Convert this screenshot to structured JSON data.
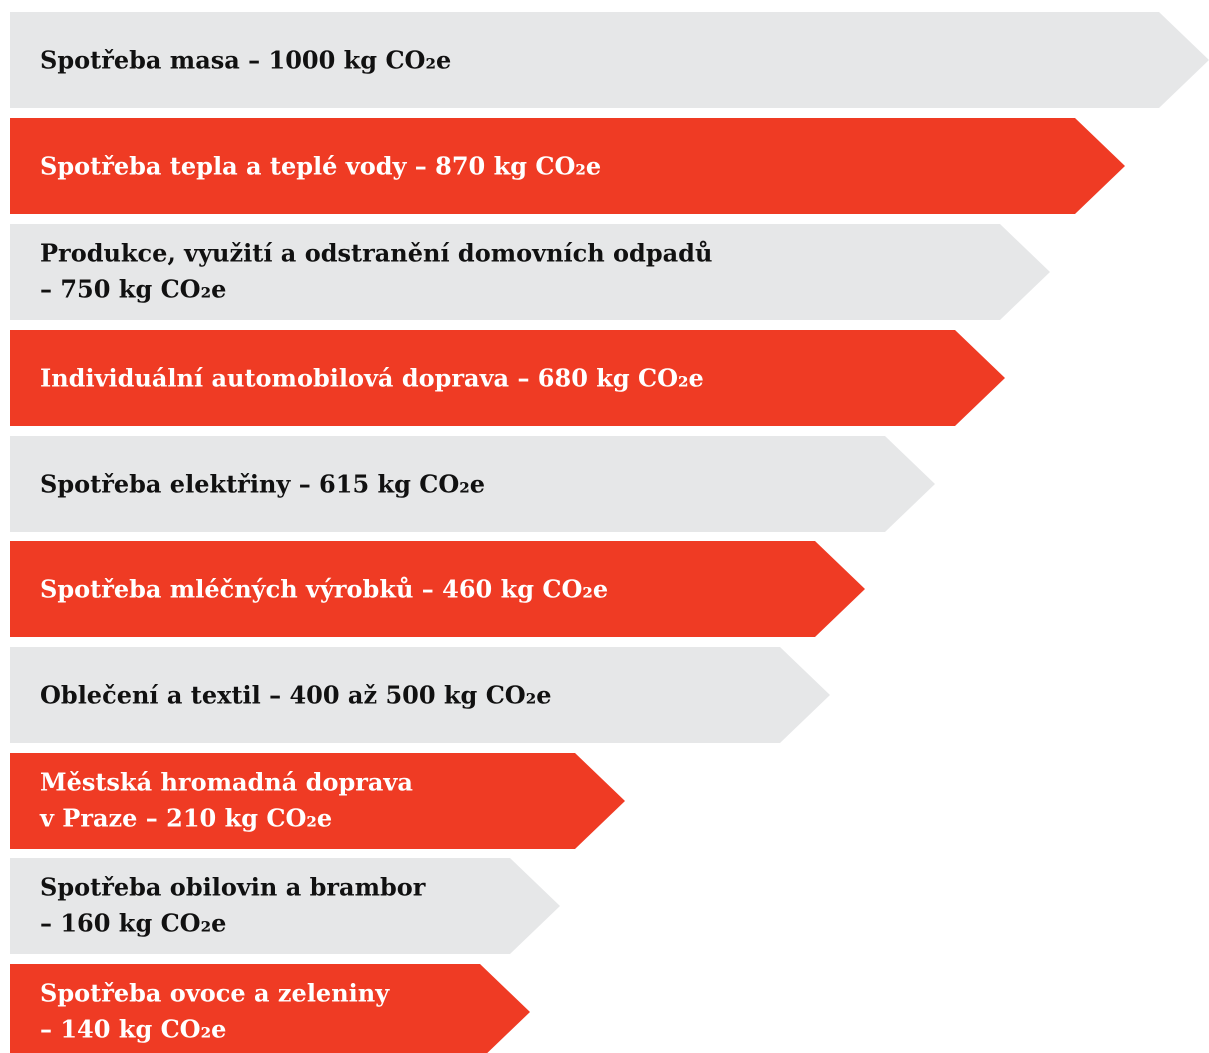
{
  "items": [
    {
      "lines": [
        "Spotřeba masa – 1000 kg CO₂e"
      ]
    },
    {
      "lines": [
        "Spotřeba tepla a teplé vody – 870 kg CO₂e"
      ]
    },
    {
      "lines": [
        "Produkce, využití a odstranění domovních odpadů",
        "– 750 kg CO₂e"
      ]
    },
    {
      "lines": [
        "Individuální automobilová doprava – 680 kg CO₂e"
      ]
    },
    {
      "lines": [
        "Spotřeba elektřiny – 615 kg CO₂e"
      ]
    },
    {
      "lines": [
        "Spotřeba mléčných výrobků – 460 kg CO₂e"
      ]
    },
    {
      "lines": [
        "Oblečení a textil – 400 až 500 kg CO₂e"
      ]
    },
    {
      "lines": [
        "Městská hromadná doprava",
        "v Praze – 210 kg CO₂e"
      ]
    },
    {
      "lines": [
        "Spotřeba obilovin a brambor",
        "– 160 kg CO₂e"
      ]
    },
    {
      "lines": [
        "Spotřeba ovoce a zeleniny",
        "– 140 kg CO₂e"
      ]
    }
  ]
}
